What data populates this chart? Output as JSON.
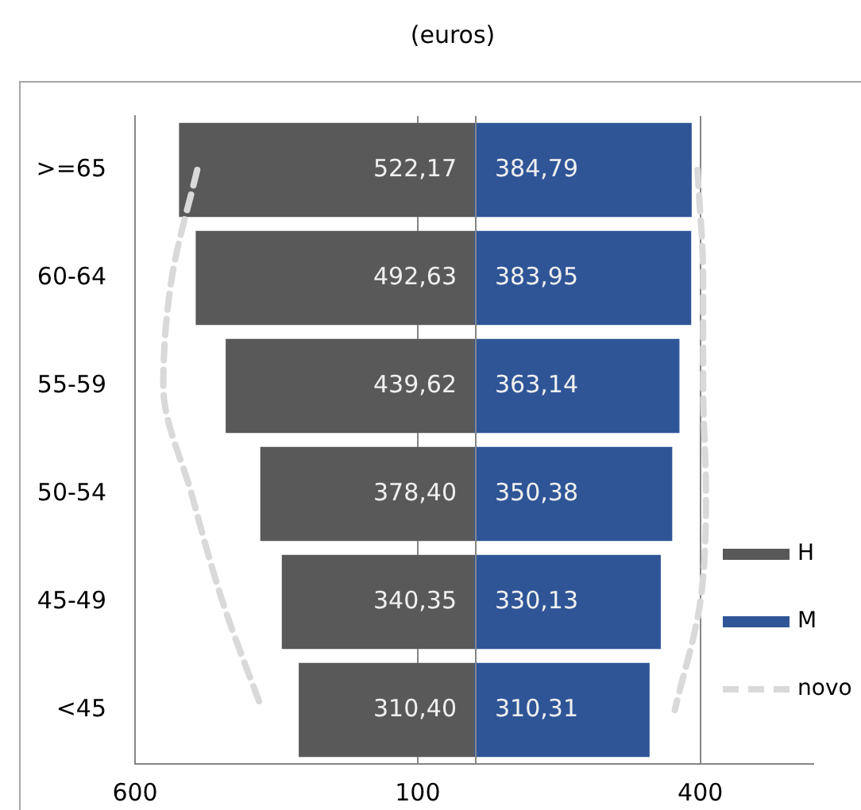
{
  "chart_data": {
    "type": "bar",
    "orientation": "horizontal",
    "title": "(euros)",
    "categories": [
      ">=65",
      "60-64",
      "55-59",
      "50-54",
      "45-49",
      "<45"
    ],
    "series": [
      {
        "name": "H",
        "color": "#595959",
        "base": [
          -522.17,
          -492.63,
          -439.62,
          -378.4,
          -340.35,
          -310.4
        ],
        "values": [
          522.17,
          492.63,
          439.62,
          378.4,
          340.35,
          310.4
        ],
        "value_labels": [
          "522,17",
          "492,63",
          "439,62",
          "378,40",
          "340,35",
          "310,40"
        ]
      },
      {
        "name": "M",
        "color": "#2f5597",
        "values": [
          384.79,
          383.95,
          363.14,
          350.38,
          330.13,
          310.31
        ],
        "value_labels": [
          "384,79",
          "383,95",
          "363,14",
          "350,38",
          "330,13",
          "310,31"
        ]
      },
      {
        "name": "novo",
        "type": "line",
        "line_style": "dashed",
        "color": "#d9d9d9",
        "values": [
          -490,
          -535,
          -550,
          -500,
          -445,
          -375
        ]
      },
      {
        "type": "line",
        "line_style": "dashed",
        "color": "#d9d9d9",
        "values": [
          395,
          405,
          405,
          410,
          400,
          355
        ]
      }
    ],
    "xlim": [
      -600,
      600
    ],
    "xticks": [
      {
        "value": -600,
        "label": "600"
      },
      {
        "value": -100,
        "label": "100"
      },
      400
    ],
    "grid": "x",
    "legend": "right"
  }
}
